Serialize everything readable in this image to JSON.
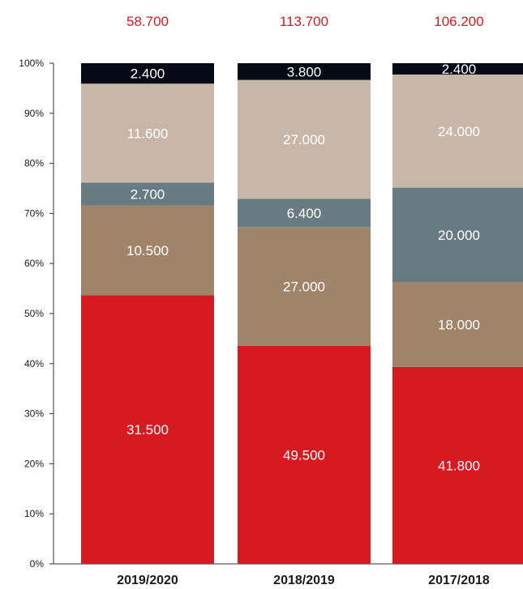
{
  "chart_data": {
    "type": "bar",
    "stacked": true,
    "normalized": true,
    "title": "",
    "xlabel": "",
    "ylabel": "",
    "ylim": [
      0,
      100
    ],
    "y_ticks": [
      "0%",
      "10%",
      "20%",
      "30%",
      "40%",
      "50%",
      "60%",
      "70%",
      "80%",
      "90%",
      "100%"
    ],
    "categories": [
      "2019/2020",
      "2018/2019",
      "2017/2018"
    ],
    "totals": [
      "58.700",
      "113.700",
      "106.200"
    ],
    "total_color": "#d71920",
    "series": [
      {
        "color": "#d71920",
        "values": [
          31.5,
          49.5,
          41.8
        ],
        "labels": [
          "31.500",
          "49.500",
          "41.800"
        ]
      },
      {
        "color": "#a08469",
        "values": [
          10.5,
          27.0,
          18.0
        ],
        "labels": [
          "10.500",
          "27.000",
          "18.000"
        ]
      },
      {
        "color": "#687a82",
        "values": [
          2.7,
          6.4,
          20.0
        ],
        "labels": [
          "2.700",
          "6.400",
          "20.000"
        ]
      },
      {
        "color": "#c8b7a8",
        "values": [
          11.6,
          27.0,
          24.0
        ],
        "labels": [
          "11.600",
          "27.000",
          "24.000"
        ]
      },
      {
        "color": "#050a14",
        "values": [
          2.4,
          3.8,
          2.4
        ],
        "labels": [
          "2.400",
          "3.800",
          "2.400"
        ]
      }
    ],
    "grid": false,
    "legend": "none"
  }
}
